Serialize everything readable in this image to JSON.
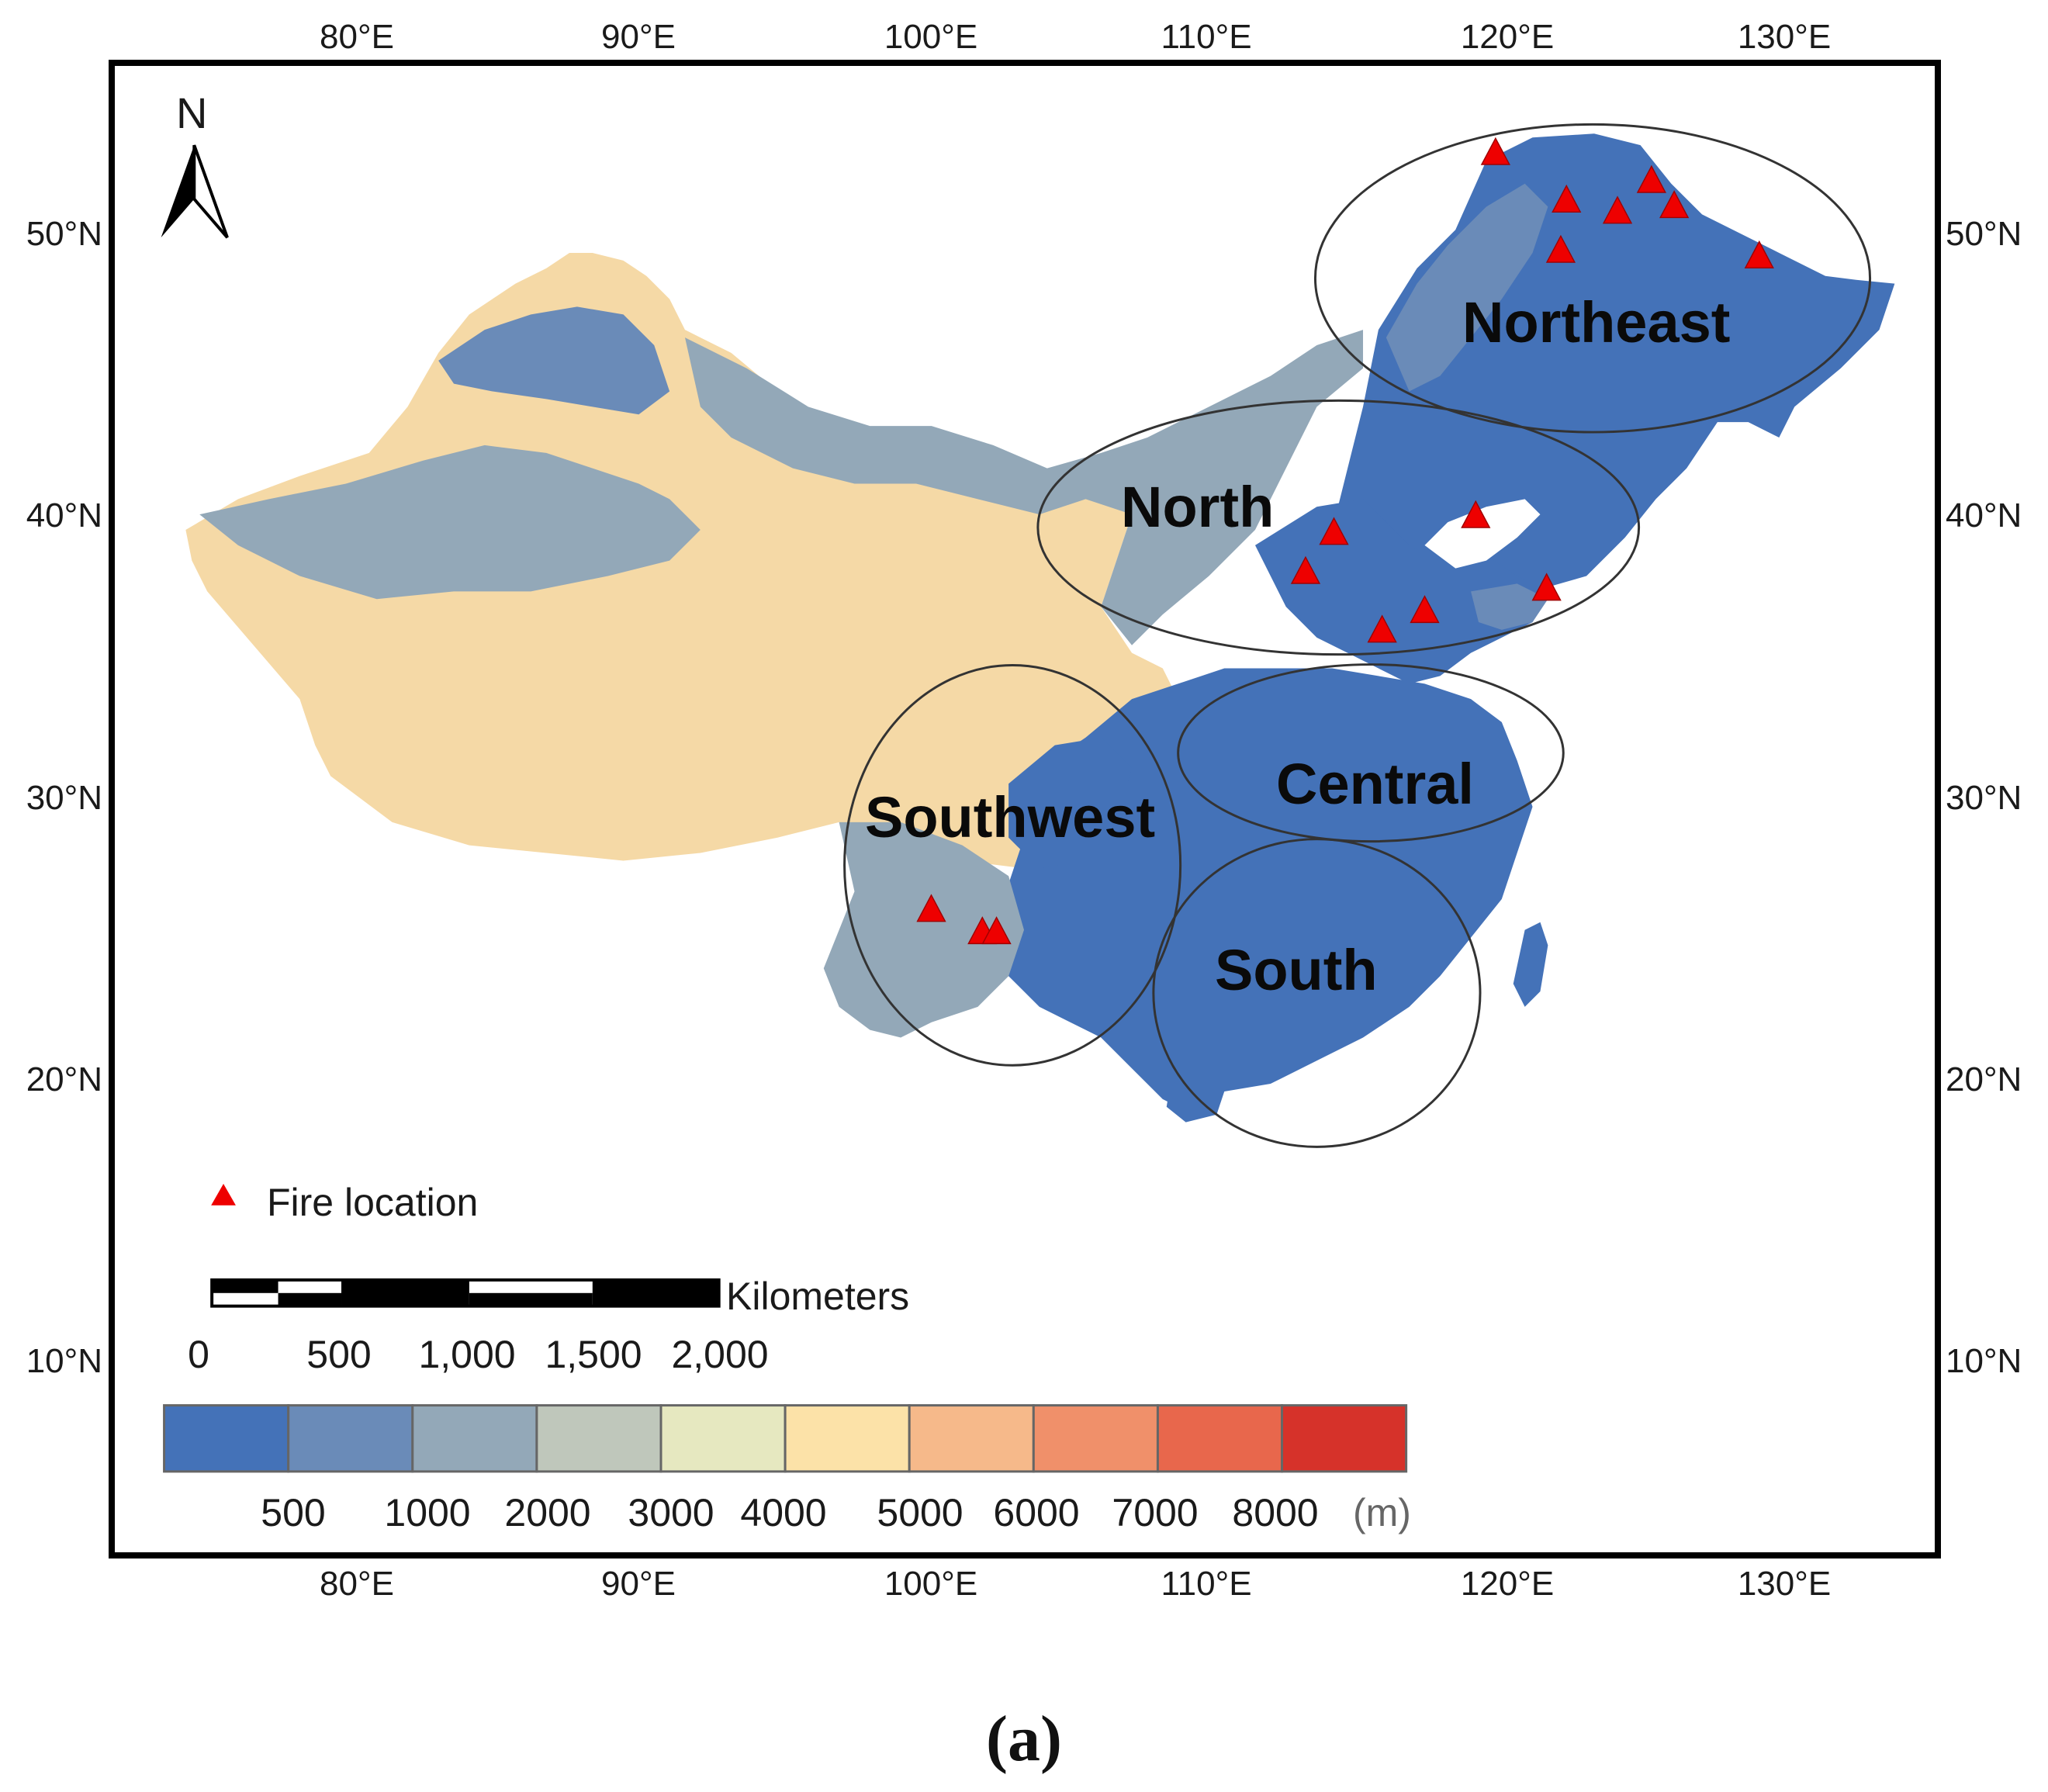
{
  "axes": {
    "top_lon": [
      "80°E",
      "90°E",
      "100°E",
      "110°E",
      "120°E",
      "130°E"
    ],
    "bottom_lon": [
      "80°E",
      "90°E",
      "100°E",
      "110°E",
      "120°E",
      "130°E"
    ],
    "left_lat": [
      "50°N",
      "40°N",
      "30°N",
      "20°N",
      "10°N"
    ],
    "right_lat": [
      "50°N",
      "40°N",
      "30°N",
      "20°N",
      "10°N"
    ]
  },
  "north_arrow": {
    "label": "N"
  },
  "regions": [
    {
      "name": "Northeast"
    },
    {
      "name": "North"
    },
    {
      "name": "Central"
    },
    {
      "name": "Southwest"
    },
    {
      "name": "South"
    }
  ],
  "fire_legend": {
    "label": "Fire location",
    "color": "#ee0000"
  },
  "fire_locations": [
    {
      "region": "Northeast",
      "lon": 120.0,
      "lat": 53.0
    },
    {
      "region": "Northeast",
      "lon": 122.5,
      "lat": 51.3
    },
    {
      "region": "Northeast",
      "lon": 124.3,
      "lat": 50.9
    },
    {
      "region": "Northeast",
      "lon": 125.5,
      "lat": 52.0
    },
    {
      "region": "Northeast",
      "lon": 126.3,
      "lat": 51.1
    },
    {
      "region": "Northeast",
      "lon": 122.3,
      "lat": 49.5
    },
    {
      "region": "Northeast",
      "lon": 129.3,
      "lat": 49.3
    },
    {
      "region": "North",
      "lon": 114.3,
      "lat": 39.4
    },
    {
      "region": "North",
      "lon": 119.3,
      "lat": 40.0
    },
    {
      "region": "North",
      "lon": 113.3,
      "lat": 38.0
    },
    {
      "region": "North",
      "lon": 121.8,
      "lat": 37.4
    },
    {
      "region": "North",
      "lon": 117.5,
      "lat": 36.6
    },
    {
      "region": "North",
      "lon": 116.0,
      "lat": 35.9
    },
    {
      "region": "Southwest",
      "lon": 100.1,
      "lat": 25.9
    },
    {
      "region": "Southwest",
      "lon": 101.9,
      "lat": 25.1
    },
    {
      "region": "Southwest",
      "lon": 102.4,
      "lat": 25.1
    }
  ],
  "scale_bar": {
    "unit": "Kilometers",
    "ticks": [
      "0",
      "500",
      "1,000",
      "1,500",
      "2,000"
    ]
  },
  "elevation_legend": {
    "unit": "(m)",
    "labels": [
      "500",
      "1000",
      "2000",
      "3000",
      "4000",
      "5000",
      "6000",
      "7000",
      "8000"
    ],
    "colors": [
      "#4472b8",
      "#6a8bb8",
      "#93a8b8",
      "#bfc7bb",
      "#e6e8c0",
      "#fce2a8",
      "#f6b98a",
      "#f0906a",
      "#e8674c",
      "#d6322a"
    ]
  },
  "caption": {
    "text": "(a)"
  }
}
